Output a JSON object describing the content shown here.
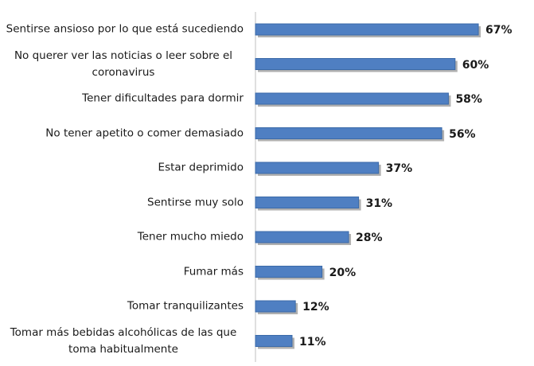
{
  "chart_data": {
    "type": "bar",
    "orientation": "horizontal",
    "categories": [
      "Sentirse ansioso por lo que está sucediendo",
      "No querer ver las noticias o leer sobre el coronavirus",
      "Tener dificultades para dormir",
      "No tener apetito o comer demasiado",
      "Estar deprimido",
      "Sentirse muy solo",
      "Tener mucho miedo",
      "Fumar más",
      "Tomar tranquilizantes",
      "Tomar más bebidas alcohólicas de las que toma habitualmente"
    ],
    "values": [
      67,
      60,
      58,
      56,
      37,
      31,
      28,
      20,
      12,
      11
    ],
    "value_labels": [
      "67%",
      "60%",
      "58%",
      "56%",
      "37%",
      "31%",
      "28%",
      "20%",
      "12%",
      "11%"
    ],
    "color": "#4f7fc2"
  }
}
